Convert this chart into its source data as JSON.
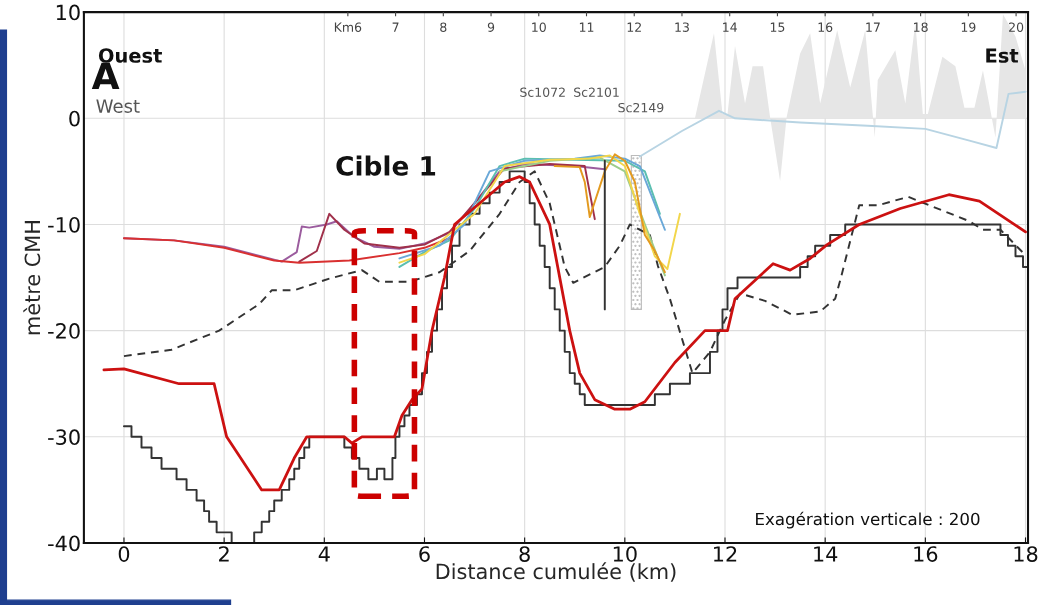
{
  "chart_data": {
    "type": "line",
    "xlabel": "Distance cumulée (km)",
    "ylabel": "mètre CMH",
    "xlim": [
      -0.8,
      18.05
    ],
    "xticks": [
      0,
      2,
      4,
      6,
      8,
      10,
      12,
      14,
      16,
      18
    ],
    "ylim": [
      -40,
      10
    ],
    "yticks": [
      -40,
      -30,
      -20,
      -10,
      0,
      10
    ],
    "x2lim": [
      0.47,
      20.25
    ],
    "x2ticks": [
      {
        "value": 6,
        "label": "Km6"
      },
      7,
      8,
      9,
      10,
      11,
      12,
      13,
      14,
      15,
      16,
      17,
      18,
      19,
      20
    ],
    "grid": true,
    "legend": false,
    "annotations": [
      "A",
      "Ouest",
      "Est",
      "West",
      "Cible 1",
      "Exagération verticale : 200",
      "Sc1072",
      "Sc2101",
      "Sc2149"
    ],
    "series": [
      {
        "type": "bar",
        "color": "#bbbbbb",
        "x": [
          10.23
        ],
        "base": [
          -18
        ],
        "values": [
          14.5
        ]
      },
      {
        "type": "area",
        "color": "#e6e6e6",
        "x": [
          11.4,
          11.78,
          11.95,
          12.05,
          12.2,
          12.4,
          12.55,
          12.76,
          12.9,
          13.1,
          13.23,
          13.5,
          13.7,
          13.9,
          14.24,
          14.5,
          14.8,
          14.99,
          15.05,
          15.4,
          15.6,
          15.8,
          15.95,
          16.05,
          16.34,
          16.6,
          16.78,
          16.98,
          17.15,
          17.4,
          17.55,
          17.8,
          18.0
        ],
        "values": [
          0,
          8.0,
          0.4,
          0.4,
          6.8,
          1.4,
          4.9,
          4.9,
          0.1,
          -5.9,
          0.1,
          6.1,
          8.0,
          1.4,
          8.3,
          2.9,
          8.3,
          -1.8,
          3.6,
          6.4,
          1.4,
          9.0,
          0.4,
          0.4,
          5.8,
          4.9,
          1,
          1,
          4.5,
          -1.8,
          9.8,
          7.7,
          4.5
        ]
      },
      {
        "type": "line",
        "color": "#b8d4e3",
        "x": [
          10.3,
          11.14,
          11.88,
          12.2,
          13.5,
          14.85,
          16.0,
          16.88,
          17.42,
          17.66,
          18.0
        ],
        "values": [
          -3.6,
          -1.2,
          0.7,
          0.0,
          -0.4,
          -0.7,
          -1.0,
          -2.1,
          -2.8,
          2.3,
          2.5
        ]
      },
      {
        "type": "line",
        "line_style": "dashed",
        "color": "#333333",
        "x": [
          0,
          0.95,
          1.9,
          2.7,
          2.95,
          3.4,
          4.1,
          4.75,
          5.1,
          5.7,
          6.3,
          6.9,
          7.5,
          7.9,
          8.2,
          8.5,
          8.8,
          8.97,
          9.6,
          9.9,
          10.1,
          10.5,
          10.66,
          10.9,
          11.35,
          11.7,
          12.0,
          12.3,
          12.8,
          13.34,
          13.9,
          14.2,
          14.31,
          14.68,
          15.05,
          15.66,
          16.88,
          17.15,
          17.5,
          18.0
        ],
        "values": [
          -22.4,
          -21.8,
          -20,
          -17.5,
          -16.2,
          -16.2,
          -15.1,
          -14.3,
          -15.4,
          -15.4,
          -14.5,
          -12.5,
          -9,
          -6,
          -5,
          -8,
          -14,
          -15.5,
          -14,
          -12,
          -10,
          -11,
          -13.9,
          -17,
          -24,
          -22,
          -19,
          -16.5,
          -17.2,
          -18.5,
          -18.2,
          -17,
          -15.1,
          -8.2,
          -8.2,
          -7.4,
          -9.7,
          -10.5,
          -10.5,
          -12.9
        ]
      },
      {
        "type": "step",
        "color": "#333333",
        "x": [
          0,
          0.15,
          0.35,
          0.55,
          0.75,
          1.05,
          1.25,
          1.45,
          1.6,
          1.7,
          1.85,
          2.15,
          2.6,
          2.75,
          2.9,
          3.0,
          3.15,
          3.3,
          3.4,
          3.5,
          3.6,
          3.7,
          4.4,
          4.55,
          4.7,
          4.88,
          5.05,
          5.2,
          5.36,
          5.42,
          5.5,
          5.6,
          5.7,
          5.85,
          5.95,
          6.05,
          6.15,
          6.25,
          6.35,
          6.45,
          6.55,
          6.7,
          6.9,
          7.1,
          7.3,
          7.5,
          7.7,
          8.0,
          8.1,
          8.2,
          8.3,
          8.4,
          8.5,
          8.6,
          8.7,
          8.8,
          8.9,
          9.0,
          9.1,
          9.2,
          10.6,
          10.9,
          11.3,
          11.7,
          11.85,
          11.95,
          12.05,
          12.25,
          13.5,
          13.65,
          13.8,
          14.1,
          14.4,
          17.5,
          17.65,
          17.8,
          17.95,
          18.05
        ],
        "values": [
          -29,
          -30,
          -31,
          -32,
          -33,
          -34,
          -35,
          -36,
          -37,
          -38,
          -39,
          -40,
          -39,
          -38,
          -37,
          -36,
          -35,
          -34,
          -33,
          -32,
          -31,
          -30,
          -31,
          -32,
          -33,
          -34,
          -33,
          -34,
          -32,
          -30,
          -29,
          -28,
          -27,
          -26,
          -24,
          -22,
          -20,
          -18,
          -16,
          -14,
          -12,
          -10,
          -9,
          -8,
          -7,
          -6,
          -5,
          -6,
          -8,
          -10,
          -12,
          -14,
          -16,
          -18,
          -20,
          -22,
          -24,
          -25,
          -26,
          -27,
          -26,
          -25,
          -24,
          -22,
          -20,
          -18,
          -16,
          -15,
          -14,
          -13,
          -12,
          -11,
          -10,
          -11,
          -12,
          -13,
          -14,
          -14
        ]
      },
      {
        "type": "line",
        "color": "#9b5c9e",
        "x": [
          0,
          1,
          2,
          3.15,
          3.45,
          3.55,
          3.7,
          4.05,
          4.25,
          4.6,
          5.0,
          5.5,
          6.0,
          6.5,
          7.0,
          7.5,
          8.0,
          9.0,
          9.6
        ],
        "values": [
          -11.3,
          -11.5,
          -12.1,
          -13.5,
          -12.6,
          -10.2,
          -10.3,
          -10.0,
          -9.7,
          -11.2,
          -12.1,
          -12.3,
          -11.8,
          -10.8,
          -8.0,
          -5.0,
          -4.3,
          -4.5,
          -4.8
        ]
      },
      {
        "type": "line",
        "color": "#a0304a",
        "x": [
          3.5,
          3.85,
          4.1,
          4.4,
          4.8,
          5.5,
          6.0,
          6.5,
          7.0,
          7.6,
          8.5,
          9.2,
          9.4
        ],
        "values": [
          -13.5,
          -12.5,
          -9.0,
          -10.5,
          -11.8,
          -12.2,
          -11.9,
          -10.7,
          -8.0,
          -4.7,
          -4.3,
          -4.5,
          -9.5
        ]
      },
      {
        "type": "line",
        "color": "#d93030",
        "x": [
          0,
          1,
          2,
          3,
          3.5,
          4.5,
          5.5,
          6.0,
          6.5
        ],
        "values": [
          -11.3,
          -11.5,
          -12.2,
          -13.4,
          -13.6,
          -13.4,
          -12.7,
          -12.2,
          -11.3
        ]
      },
      {
        "type": "line",
        "color": "#5bbfb0",
        "x": [
          5.5,
          6.0,
          6.5,
          7.0,
          7.5,
          8.0,
          9.0,
          10.0,
          10.4,
          10.7
        ],
        "values": [
          -14,
          -12.6,
          -11.5,
          -8.5,
          -4.5,
          -3.8,
          -3.9,
          -4.0,
          -5.0,
          -9.0
        ]
      },
      {
        "type": "line",
        "color": "#6aa8d8",
        "x": [
          5.5,
          6.3,
          6.8,
          7.3,
          8.0,
          9.0,
          9.5,
          10.0,
          10.3,
          10.8
        ],
        "values": [
          -13.2,
          -12.0,
          -10.0,
          -5.0,
          -4.0,
          -3.8,
          -3.5,
          -3.8,
          -4.5,
          -10.5
        ]
      },
      {
        "type": "line",
        "color": "#9ccc8a",
        "x": [
          7.5,
          8.5,
          9.5,
          10.0,
          10.4,
          10.8
        ],
        "values": [
          -5.0,
          -4.0,
          -3.7,
          -5.0,
          -10.0,
          -14.8
        ]
      },
      {
        "type": "line",
        "color": "#f2d64b",
        "x": [
          5.5,
          6.0,
          7.0,
          7.6,
          8.5,
          9.3,
          9.7,
          10.0,
          10.3,
          10.6,
          10.85,
          11.1
        ],
        "values": [
          -13.6,
          -12.8,
          -9.0,
          -4.5,
          -3.9,
          -3.8,
          -3.5,
          -4.5,
          -9.0,
          -13.0,
          -14.2,
          -9.0
        ]
      },
      {
        "type": "line",
        "color": "#e39a1f",
        "x": [
          8.6,
          9.1,
          9.2,
          9.3,
          9.6,
          9.8,
          10.0,
          10.2,
          10.4,
          10.6,
          10.8
        ],
        "values": [
          -4.5,
          -4.6,
          -6.0,
          -9.3,
          -5.0,
          -3.4,
          -4.0,
          -6.0,
          -11.0,
          -12.5,
          -14.5
        ]
      },
      {
        "type": "line",
        "color": "#333333",
        "x": [
          9.6,
          9.6
        ],
        "values": [
          -4,
          -18
        ]
      },
      {
        "color": "#cc1111",
        "x": [
          -0.4,
          0,
          1.1,
          1.8,
          2.05,
          2.75,
          3.1,
          3.4,
          3.65,
          4.4,
          4.55,
          4.75,
          5.4,
          5.55,
          5.75,
          5.95,
          6.15,
          6.4,
          6.6,
          7.1,
          7.6,
          7.9,
          8.1,
          8.5,
          8.9,
          9.1,
          9.4,
          9.8,
          10.1,
          10.4,
          11.0,
          11.6,
          12.05,
          12.2,
          12.96,
          13.3,
          13.7,
          14.04,
          14.68,
          15.5,
          16.47,
          17.08,
          18.0
        ],
        "values": [
          -23.7,
          -23.6,
          -25,
          -25,
          -30,
          -35,
          -35,
          -32,
          -30,
          -30,
          -30.6,
          -30,
          -30,
          -28,
          -26.5,
          -25.5,
          -20,
          -15,
          -10,
          -8,
          -6,
          -5.5,
          -6,
          -10,
          -20,
          -24,
          -26.5,
          -27.4,
          -27.4,
          -26.7,
          -23,
          -20,
          -20,
          -17,
          -13.7,
          -14.3,
          -13.2,
          -11.9,
          -10,
          -8.5,
          -7.2,
          -7.8,
          -10.7
        ]
      }
    ]
  }
}
